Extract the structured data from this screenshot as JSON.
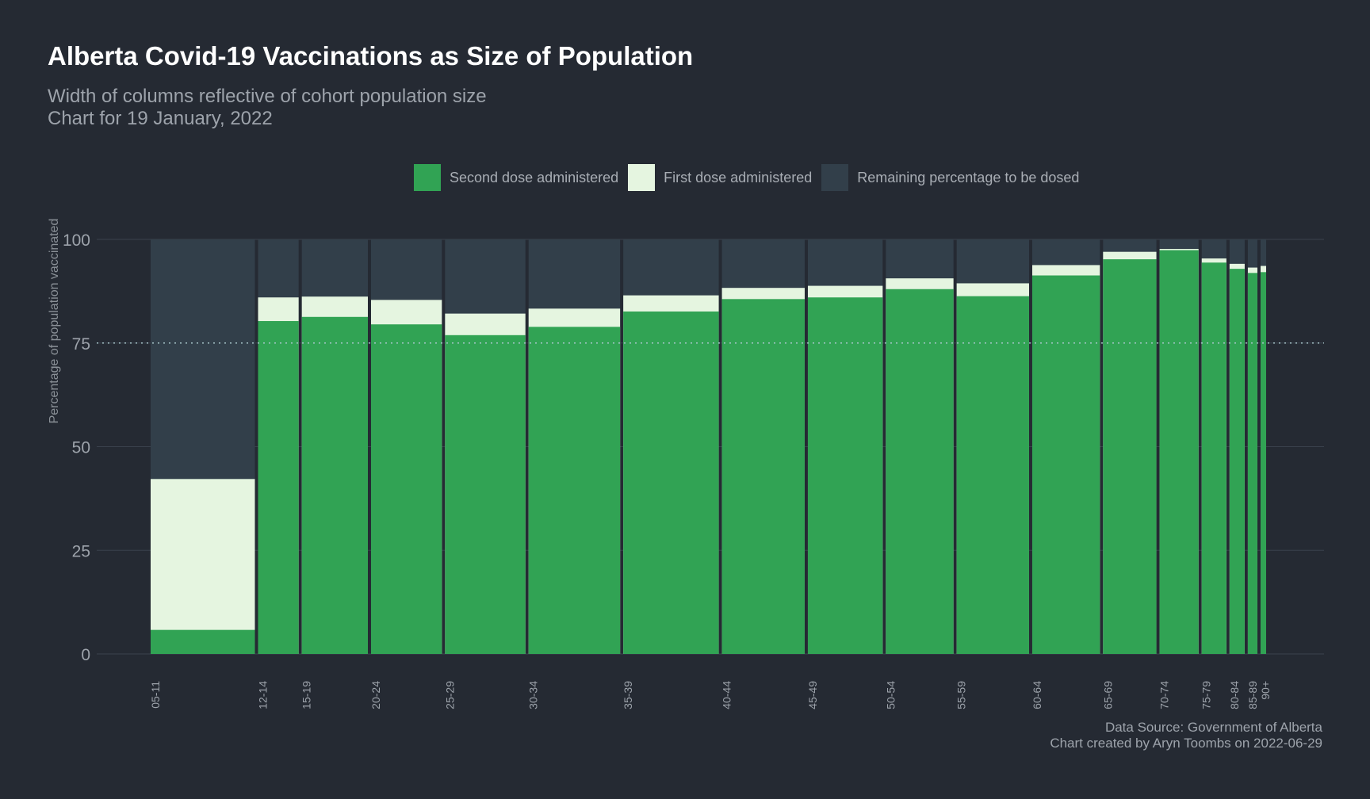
{
  "header": {
    "title": "Alberta Covid-19 Vaccinations as Size of Population",
    "subtitle_line1": "Width of columns reflective of cohort population size",
    "subtitle_line2": "Chart for 19 January, 2022"
  },
  "legend": [
    {
      "label": "Second dose administered",
      "color": "#31a354"
    },
    {
      "label": "First dose administered",
      "color": "#e5f5e0"
    },
    {
      "label": "Remaining percentage to be dosed",
      "color": "#323f4a"
    }
  ],
  "caption": {
    "line1": "Data Source: Government of Alberta",
    "line2": "Chart created by Aryn Toombs on 2022-06-29"
  },
  "chart_data": {
    "type": "bar",
    "variable_width": true,
    "ylabel": "Percentage of population vaccinated",
    "xlabel": "",
    "ylim": [
      0,
      100
    ],
    "yticks": [
      0,
      25,
      50,
      75,
      100
    ],
    "reference_line": 75,
    "grid": true,
    "legend_position": "top",
    "categories": [
      "05-11",
      "12-14",
      "15-19",
      "20-24",
      "25-29",
      "30-34",
      "35-39",
      "40-44",
      "45-49",
      "50-54",
      "55-59",
      "60-64",
      "65-69",
      "70-74",
      "75-79",
      "80-84",
      "85-89",
      "90+"
    ],
    "population_width": [
      131,
      51,
      83,
      89,
      101,
      115,
      120,
      104,
      94,
      85,
      91,
      85,
      67,
      49,
      31,
      19,
      12,
      7
    ],
    "series": [
      {
        "name": "Second dose administered",
        "values": [
          5.8,
          80.3,
          81.3,
          79.5,
          76.9,
          78.9,
          82.6,
          85.6,
          86.0,
          88.0,
          86.3,
          91.3,
          95.2,
          97.4,
          94.4,
          92.9,
          91.9,
          92.1
        ]
      },
      {
        "name": "First dose administered",
        "values": [
          42.2,
          86.0,
          86.2,
          85.4,
          82.1,
          83.3,
          86.5,
          88.3,
          88.8,
          90.6,
          89.4,
          93.8,
          97.0,
          97.7,
          95.4,
          94.1,
          93.2,
          93.6
        ]
      },
      {
        "name": "Remaining percentage to be dosed",
        "values": [
          100,
          100,
          100,
          100,
          100,
          100,
          100,
          100,
          100,
          100,
          100,
          100,
          100,
          100,
          100,
          100,
          100,
          100
        ]
      }
    ]
  }
}
